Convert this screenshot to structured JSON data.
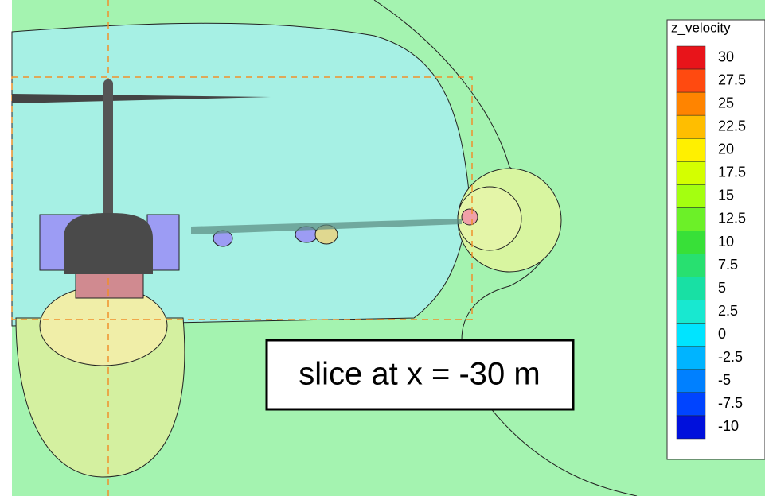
{
  "chart_data": {
    "type": "contour",
    "colorbar_title": "z_velocity",
    "levels": [
      30,
      27.5,
      25,
      22.5,
      20,
      17.5,
      15,
      12.5,
      10,
      7.5,
      5,
      2.5,
      0,
      -2.5,
      -5,
      -7.5,
      -10
    ],
    "colors": [
      "#e8141a",
      "#ff4a10",
      "#ff8400",
      "#ffbe00",
      "#fff000",
      "#d4ff00",
      "#a4ff10",
      "#6cf028",
      "#38e038",
      "#28e070",
      "#18e0a4",
      "#18e8d0",
      "#00e4ff",
      "#00b4ff",
      "#0080ff",
      "#0044ff",
      "#0010dc"
    ],
    "annotation": "slice at x = -30 m"
  }
}
